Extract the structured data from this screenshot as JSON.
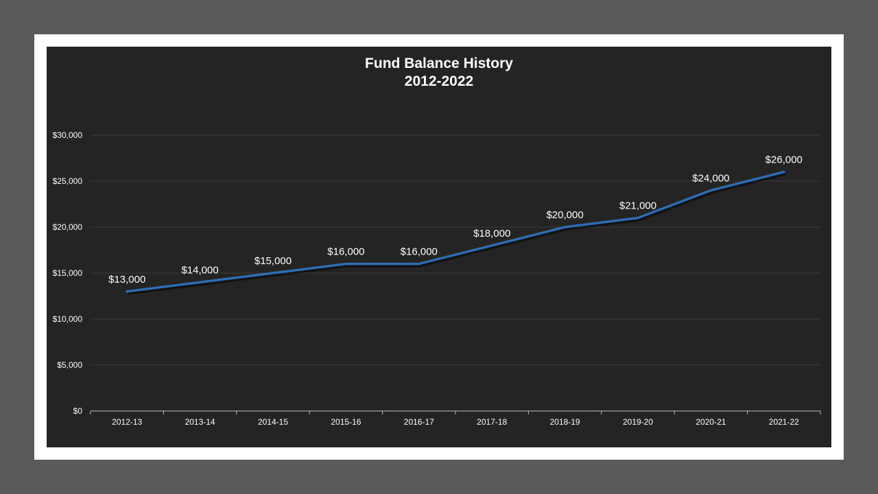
{
  "chart_data": {
    "type": "line",
    "title": "Fund Balance History",
    "subtitle": "2012-2022",
    "xlabel": "",
    "ylabel": "",
    "categories": [
      "2012-13",
      "2013-14",
      "2014-15",
      "2015-16",
      "2016-17",
      "2017-18",
      "2018-19",
      "2019-20",
      "2020-21",
      "2021-22"
    ],
    "series": [
      {
        "values": [
          13000,
          14000,
          15000,
          16000,
          16000,
          18000,
          20000,
          21000,
          24000,
          26000
        ],
        "data_labels": [
          "$13,000",
          "$14,000",
          "$15,000",
          "$16,000",
          "$16,000",
          "$18,000",
          "$20,000",
          "$21,000",
          "$24,000",
          "$26,000"
        ]
      }
    ],
    "ylim": [
      0,
      30000
    ],
    "yticks": [
      0,
      5000,
      10000,
      15000,
      20000,
      25000,
      30000
    ],
    "ytick_labels": [
      "$0",
      "$5,000",
      "$10,000",
      "$15,000",
      "$20,000",
      "$25,000",
      "$30,000"
    ],
    "grid": true,
    "legend": "none",
    "colors": {
      "line": "#2e6db4",
      "background": "#242424",
      "gridline": "#3d3d3d",
      "text": "#ffffff",
      "frame": "#ffffff",
      "page_background": "#5a5a5a"
    }
  }
}
